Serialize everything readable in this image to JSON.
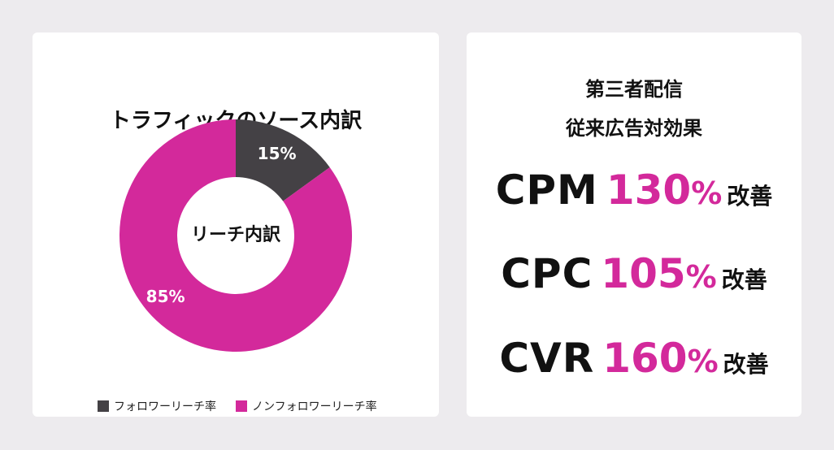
{
  "colors": {
    "background": "#edebee",
    "card": "#ffffff",
    "follower": "#444145",
    "non_follower": "#d3299b",
    "accent": "#d3299b",
    "text": "#111111"
  },
  "left_panel": {
    "title": "トラフィックのソース内訳",
    "center_label": "リーチ内訳",
    "legend": [
      {
        "label": "フォロワーリーチ率",
        "color": "#444145"
      },
      {
        "label": "ノンフォロワーリーチ率",
        "color": "#d3299b"
      }
    ]
  },
  "chart_data": {
    "type": "pie",
    "title": "トラフィックのソース内訳",
    "center_label": "リーチ内訳",
    "categories": [
      "フォロワーリーチ率",
      "ノンフォロワーリーチ率"
    ],
    "values": [
      15,
      85
    ],
    "labels": [
      "15%",
      "85%"
    ],
    "colors": [
      "#444145",
      "#d3299b"
    ],
    "legend_position": "bottom"
  },
  "right_panel": {
    "title_line1": "第三者配信",
    "title_line2": "従来広告対効果",
    "metrics": [
      {
        "name": "CPM",
        "value": "130",
        "unit": "%",
        "suffix": "改善"
      },
      {
        "name": "CPC",
        "value": "105",
        "unit": "%",
        "suffix": "改善"
      },
      {
        "name": "CVR",
        "value": "160",
        "unit": "%",
        "suffix": "改善"
      }
    ]
  }
}
